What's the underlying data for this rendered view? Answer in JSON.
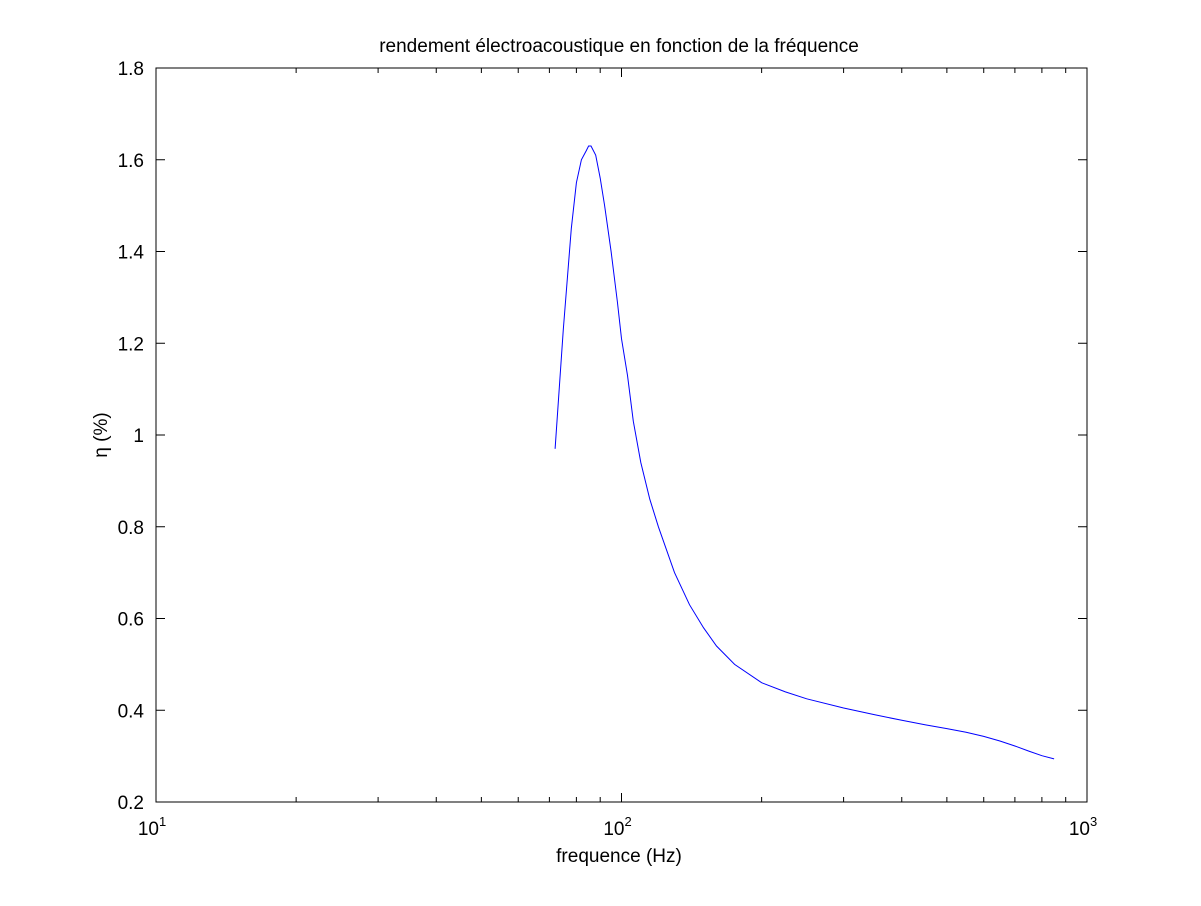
{
  "chart_data": {
    "type": "line",
    "title": "rendement électroacoustique en fonction de la fréquence",
    "xlabel": "frequence (Hz)",
    "ylabel": "η (%)",
    "xscale": "log",
    "xlim": [
      10,
      1000
    ],
    "ylim": [
      0.2,
      1.8
    ],
    "x_ticks": [
      {
        "value": 10,
        "base": "10",
        "exp": "1"
      },
      {
        "value": 100,
        "base": "10",
        "exp": "2"
      },
      {
        "value": 1000,
        "base": "10",
        "exp": "3"
      }
    ],
    "y_ticks": [
      "0.2",
      "0.4",
      "0.6",
      "0.8",
      "1",
      "1.2",
      "1.4",
      "1.6",
      "1.8"
    ],
    "grid": false,
    "legend": null,
    "series": [
      {
        "color": "#0000ff",
        "x": [
          72,
          75,
          78,
          80,
          82,
          84,
          85,
          86,
          88,
          90,
          92,
          95,
          98,
          100,
          103,
          106,
          110,
          115,
          120,
          130,
          140,
          150,
          160,
          175,
          200,
          225,
          250,
          300,
          350,
          400,
          450,
          500,
          550,
          600,
          650,
          700,
          750,
          800,
          850
        ],
        "y": [
          0.97,
          1.23,
          1.45,
          1.55,
          1.6,
          1.62,
          1.63,
          1.63,
          1.61,
          1.56,
          1.5,
          1.4,
          1.29,
          1.21,
          1.13,
          1.03,
          0.94,
          0.86,
          0.8,
          0.7,
          0.63,
          0.58,
          0.54,
          0.5,
          0.46,
          0.44,
          0.425,
          0.405,
          0.39,
          0.378,
          0.368,
          0.36,
          0.352,
          0.343,
          0.333,
          0.322,
          0.311,
          0.301,
          0.294
        ]
      }
    ]
  }
}
